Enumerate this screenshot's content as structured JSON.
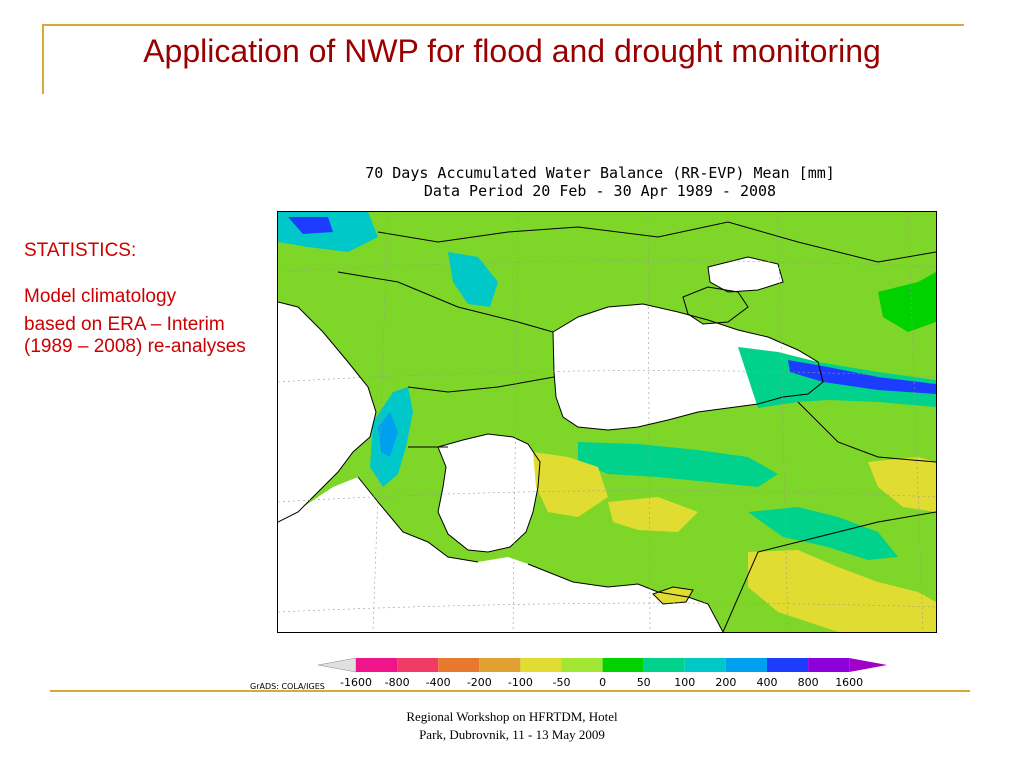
{
  "slide": {
    "title": "Application of NWP for flood and drought monitoring",
    "stats_heading": "STATISTICS:",
    "stats_line1": "Model climatology",
    "stats_line2": "based on ERA – Interim (1989 – 2008) re-analyses",
    "footer_line1": "Regional Workshop on HFRTDM, Hotel",
    "footer_line2": "Park, Dubrovnik, 11 - 13 May 2009"
  },
  "map": {
    "title_line1": "70 Days Accumulated Water Balance (RR-EVP) Mean [mm]",
    "title_line2": "Data Period 20 Feb - 30 Apr 1989 - 2008",
    "credit": "GrADS: COLA/IGES"
  },
  "legend": {
    "labels": [
      "-1600",
      "-800",
      "-400",
      "-200",
      "-100",
      "-50",
      "0",
      "50",
      "100",
      "200",
      "400",
      "800",
      "1600"
    ],
    "colors": [
      "#e0e0e0",
      "#f0148c",
      "#f03c64",
      "#e8782d",
      "#e0a032",
      "#e0dc32",
      "#a0e632",
      "#00d200",
      "#00d28c",
      "#00c8c8",
      "#00a0f0",
      "#1e3cff",
      "#8c00dc",
      "#a000c8"
    ]
  }
}
